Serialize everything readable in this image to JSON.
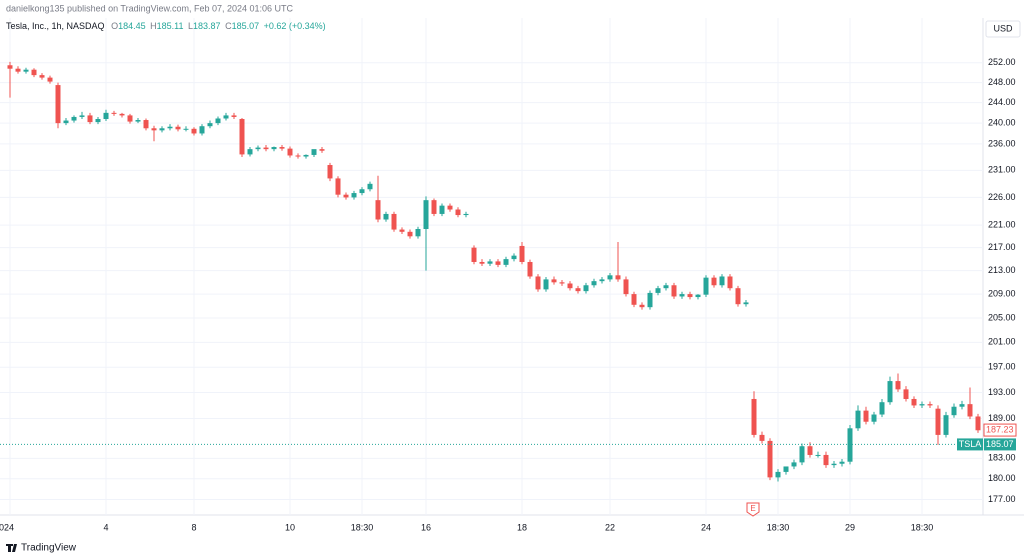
{
  "chart_data": {
    "type": "candlestick",
    "header": "danielkong135 published on TradingView.com, Feb 07, 2024 01:06 UTC",
    "title": "Tesla, Inc., 1h, NASDAQ",
    "legend": {
      "o_label": "O",
      "o": 184.45,
      "h_label": "H",
      "h": 185.11,
      "l_label": "L",
      "l": 183.87,
      "c_label": "C",
      "c": 185.07,
      "change": "+0.62",
      "change_pct": "(+0.34%)"
    },
    "currency": "USD",
    "up_color": "#26a69a",
    "down_color": "#ef5350",
    "log_scale": true,
    "grid": true,
    "ylim": [
      174.8,
      261.3
    ],
    "yticks": [
      {
        "value": 252,
        "label": "252.00"
      },
      {
        "value": 248,
        "label": "248.00"
      },
      {
        "value": 244,
        "label": "244.00"
      },
      {
        "value": 240,
        "label": "240.00"
      },
      {
        "value": 236,
        "label": "236.00"
      },
      {
        "value": 231,
        "label": "231.00"
      },
      {
        "value": 226,
        "label": "226.00"
      },
      {
        "value": 221,
        "label": "221.00"
      },
      {
        "value": 217,
        "label": "217.00"
      },
      {
        "value": 213,
        "label": "213.00"
      },
      {
        "value": 209,
        "label": "209.00"
      },
      {
        "value": 205,
        "label": "205.00"
      },
      {
        "value": 201,
        "label": "201.00"
      },
      {
        "value": 197,
        "label": "197.00"
      },
      {
        "value": 193,
        "label": "193.00"
      },
      {
        "value": 189,
        "label": "189.00"
      },
      {
        "value": 183,
        "label": "183.00"
      },
      {
        "value": 180,
        "label": "180.00"
      },
      {
        "value": 177,
        "label": "177.00"
      }
    ],
    "categories": [
      "024",
      null,
      null,
      null,
      null,
      null,
      null,
      null,
      null,
      null,
      null,
      null,
      "4",
      null,
      null,
      null,
      null,
      null,
      null,
      null,
      null,
      null,
      null,
      "8",
      null,
      null,
      null,
      null,
      null,
      null,
      null,
      null,
      null,
      null,
      null,
      "10",
      null,
      null,
      null,
      null,
      null,
      null,
      null,
      null,
      "18:30",
      null,
      null,
      null,
      null,
      null,
      null,
      null,
      "16",
      null,
      null,
      null,
      null,
      null,
      null,
      null,
      null,
      null,
      null,
      null,
      "18",
      null,
      null,
      null,
      null,
      null,
      null,
      null,
      null,
      null,
      null,
      "22",
      null,
      null,
      null,
      null,
      null,
      null,
      null,
      null,
      null,
      null,
      null,
      "24",
      null,
      null,
      null,
      null,
      null,
      null,
      null,
      null,
      "18:30",
      null,
      null,
      null,
      null,
      null,
      null,
      null,
      null,
      "29",
      null,
      null,
      null,
      null,
      null,
      null,
      null,
      null,
      "18:30",
      null,
      null,
      null,
      null,
      null,
      null,
      null
    ],
    "open": [
      251.5,
      250.8,
      250.2,
      250.6,
      249.5,
      249.0,
      247.5,
      240.0,
      240.5,
      241.2,
      241.5,
      240.2,
      240.8,
      242.0,
      241.8,
      241.5,
      240.3,
      240.6,
      239.0,
      238.6,
      239.0,
      239.3,
      238.8,
      238.9,
      238.0,
      239.4,
      240.0,
      240.9,
      241.5,
      240.8,
      234.0,
      235.0,
      235.3,
      235.0,
      235.4,
      235.1,
      233.8,
      233.6,
      233.9,
      235.0,
      232.0,
      229.5,
      226.5,
      226.0,
      226.8,
      227.5,
      225.5,
      222.0,
      223.0,
      220.2,
      219.8,
      219.0,
      220.3,
      225.5,
      223.0,
      224.5,
      223.8,
      222.8,
      217.0,
      214.5,
      214.2,
      214.6,
      214.0,
      215.0,
      217.3,
      214.5,
      212.0,
      209.8,
      211.5,
      211.0,
      210.8,
      210.0,
      209.5,
      210.5,
      211.2,
      211.5,
      212.2,
      211.5,
      209.0,
      207.2,
      206.8,
      209.2,
      210.0,
      210.5,
      208.6,
      209.0,
      208.5,
      208.9,
      211.8,
      210.5,
      212.0,
      210.0,
      207.3,
      192.0,
      186.5,
      185.6,
      180.2,
      181.0,
      181.8,
      182.4,
      184.8,
      183.5,
      183.5,
      182.0,
      182.2,
      182.5,
      187.5,
      190.2,
      188.5,
      189.6,
      191.5,
      194.8,
      193.5,
      192.0,
      191.0,
      191.2,
      190.5,
      186.5,
      189.5,
      190.8,
      191.2,
      189.3
    ],
    "high": [
      252.2,
      251.3,
      251.0,
      250.9,
      249.9,
      249.4,
      248.0,
      241.0,
      241.5,
      242.2,
      242.0,
      241.2,
      242.6,
      242.4,
      242.0,
      241.8,
      241.0,
      240.9,
      239.5,
      239.4,
      239.8,
      239.7,
      239.4,
      239.2,
      239.8,
      240.5,
      241.3,
      242.0,
      242.0,
      241.0,
      235.4,
      235.7,
      235.8,
      235.5,
      235.8,
      235.5,
      234.2,
      234.0,
      234.3,
      235.4,
      232.4,
      229.9,
      226.9,
      227.2,
      227.9,
      228.9,
      230.0,
      223.4,
      223.4,
      220.6,
      220.2,
      220.7,
      226.2,
      225.8,
      224.9,
      224.9,
      224.2,
      223.4,
      217.4,
      215.0,
      215.0,
      215.0,
      215.4,
      216.0,
      218.0,
      214.9,
      212.4,
      211.9,
      212.0,
      211.4,
      211.2,
      210.4,
      210.9,
      211.6,
      211.9,
      212.6,
      218.0,
      212.0,
      209.4,
      207.6,
      209.6,
      210.4,
      210.9,
      210.9,
      209.4,
      209.4,
      209.0,
      212.2,
      212.2,
      212.4,
      212.4,
      210.4,
      208.0,
      193.2,
      187.0,
      186.0,
      181.4,
      181.6,
      182.8,
      185.2,
      185.4,
      184.0,
      184.0,
      182.6,
      182.9,
      188.0,
      191.0,
      190.8,
      190.0,
      192.0,
      195.5,
      196.0,
      194.0,
      192.4,
      191.6,
      191.6,
      191.0,
      190.0,
      191.3,
      191.7,
      193.8,
      189.7
    ],
    "low": [
      245.0,
      249.8,
      249.8,
      249.1,
      248.6,
      247.8,
      239.0,
      239.6,
      240.1,
      240.8,
      239.8,
      239.8,
      240.4,
      241.4,
      241.1,
      239.9,
      240.0,
      238.6,
      236.5,
      238.2,
      238.6,
      238.4,
      238.4,
      237.6,
      237.6,
      239.0,
      239.6,
      240.5,
      240.8,
      233.5,
      233.6,
      234.6,
      234.6,
      234.6,
      234.7,
      233.4,
      233.2,
      233.2,
      233.5,
      234.3,
      229.0,
      226.0,
      225.6,
      225.6,
      226.4,
      227.1,
      221.5,
      221.6,
      219.8,
      219.4,
      218.6,
      218.6,
      213.0,
      222.6,
      222.6,
      223.4,
      222.4,
      222.4,
      214.1,
      213.8,
      213.8,
      213.6,
      213.6,
      214.6,
      214.1,
      211.6,
      209.4,
      209.4,
      210.6,
      210.4,
      209.6,
      209.1,
      209.1,
      210.1,
      210.8,
      211.1,
      211.1,
      208.6,
      206.8,
      206.4,
      206.4,
      208.8,
      209.6,
      208.2,
      208.2,
      208.1,
      208.1,
      208.5,
      210.1,
      210.1,
      209.6,
      206.9,
      206.9,
      186.1,
      185.2,
      179.8,
      179.6,
      180.6,
      181.4,
      182.0,
      183.1,
      183.1,
      181.6,
      181.6,
      181.8,
      182.1,
      187.1,
      188.1,
      188.1,
      189.2,
      191.1,
      193.1,
      191.6,
      190.6,
      190.6,
      190.6,
      185.0,
      186.1,
      189.1,
      190.4,
      188.9,
      186.8
    ],
    "close": [
      250.8,
      250.2,
      250.6,
      249.5,
      249.0,
      248.2,
      240.0,
      240.5,
      241.2,
      241.5,
      240.2,
      240.8,
      242.0,
      241.8,
      241.5,
      240.3,
      240.6,
      239.0,
      238.6,
      239.0,
      239.3,
      238.8,
      238.9,
      238.0,
      239.4,
      240.0,
      240.9,
      241.5,
      241.2,
      234.0,
      235.0,
      235.3,
      235.0,
      235.4,
      235.1,
      233.8,
      233.6,
      233.9,
      235.0,
      234.7,
      229.5,
      226.5,
      226.0,
      226.8,
      227.5,
      228.5,
      222.0,
      223.0,
      220.2,
      219.8,
      219.0,
      220.3,
      225.5,
      223.0,
      224.5,
      223.8,
      222.8,
      223.0,
      214.5,
      214.2,
      214.6,
      214.0,
      215.0,
      215.6,
      214.5,
      212.0,
      209.8,
      211.5,
      211.0,
      210.8,
      210.0,
      209.5,
      210.5,
      211.2,
      211.5,
      212.2,
      211.5,
      209.0,
      207.2,
      206.8,
      209.2,
      210.0,
      210.5,
      208.6,
      209.0,
      208.5,
      208.9,
      211.8,
      210.5,
      212.0,
      210.0,
      207.3,
      207.6,
      186.5,
      185.6,
      180.2,
      181.0,
      181.8,
      182.4,
      184.8,
      183.5,
      183.5,
      182.0,
      182.2,
      182.5,
      187.5,
      190.2,
      188.5,
      189.6,
      191.5,
      194.8,
      193.5,
      192.0,
      191.0,
      191.2,
      191.0,
      186.5,
      189.5,
      190.8,
      191.2,
      189.3,
      187.2
    ],
    "price_lines": [
      {
        "value": 187.23,
        "color": "#ef5350"
      },
      {
        "name": "TSLA",
        "value": 185.07,
        "color": "#26a69a"
      }
    ],
    "event_label": "E",
    "footer": "TradingView"
  }
}
